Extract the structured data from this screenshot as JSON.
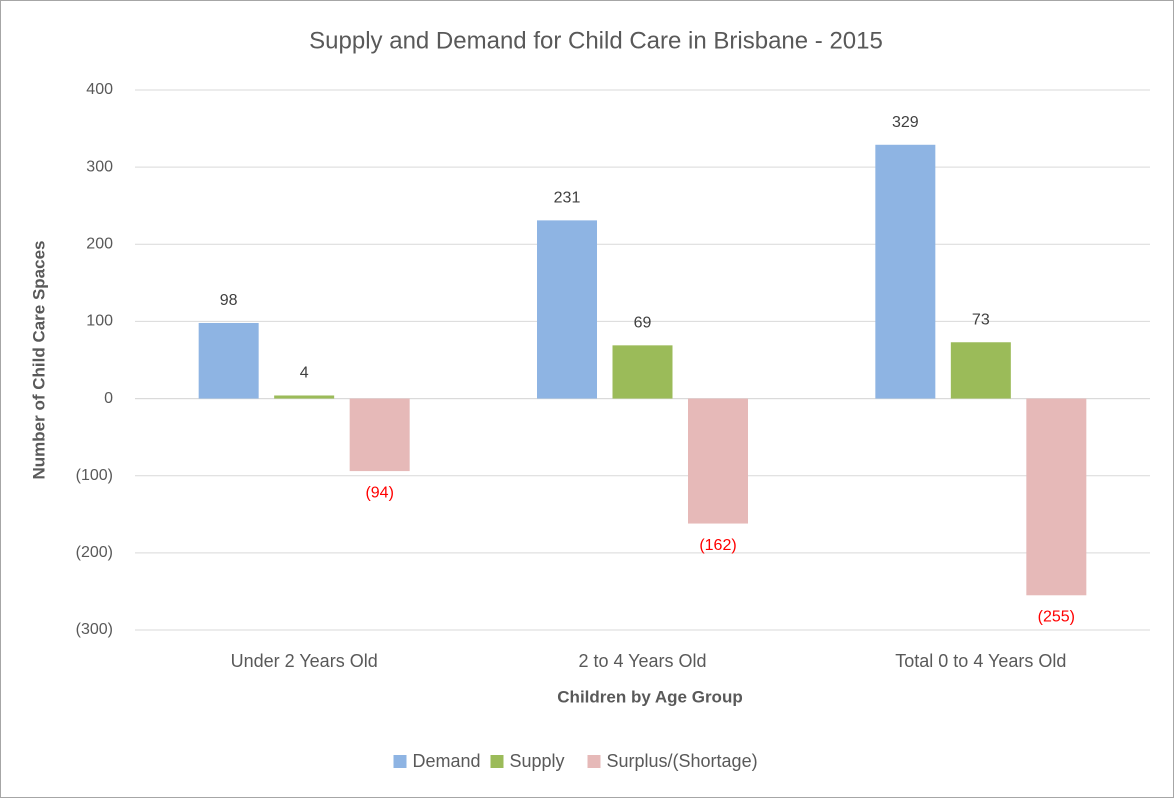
{
  "chart_data": {
    "type": "bar",
    "title": "Supply and Demand for Child Care in Brisbane - 2015",
    "x_label": "Children by Age Group",
    "y_label": "Number of Child Care Spaces",
    "categories": [
      "Under 2 Years Old",
      "2 to 4 Years Old",
      "Total 0 to 4 Years Old"
    ],
    "series": [
      {
        "name": "Demand",
        "color": "#8eb4e3",
        "label_color": "#404040",
        "values": [
          98,
          231,
          329
        ]
      },
      {
        "name": "Supply",
        "color": "#9bbb59",
        "label_color": "#404040",
        "values": [
          4,
          69,
          73
        ]
      },
      {
        "name": "Surplus/(Shortage)",
        "color": "#e6b9b8",
        "label_color": "#ff0000",
        "values": [
          -94,
          -162,
          -255
        ],
        "value_labels": [
          "(94)",
          "(162)",
          "(255)"
        ]
      }
    ],
    "ylim": [
      -300,
      400
    ],
    "yticks": [
      {
        "value": -300,
        "label": "(300)"
      },
      {
        "value": -200,
        "label": "(200)"
      },
      {
        "value": -100,
        "label": "(100)"
      },
      0,
      100,
      200,
      300,
      400
    ],
    "grid": true,
    "legend": "bottom"
  }
}
